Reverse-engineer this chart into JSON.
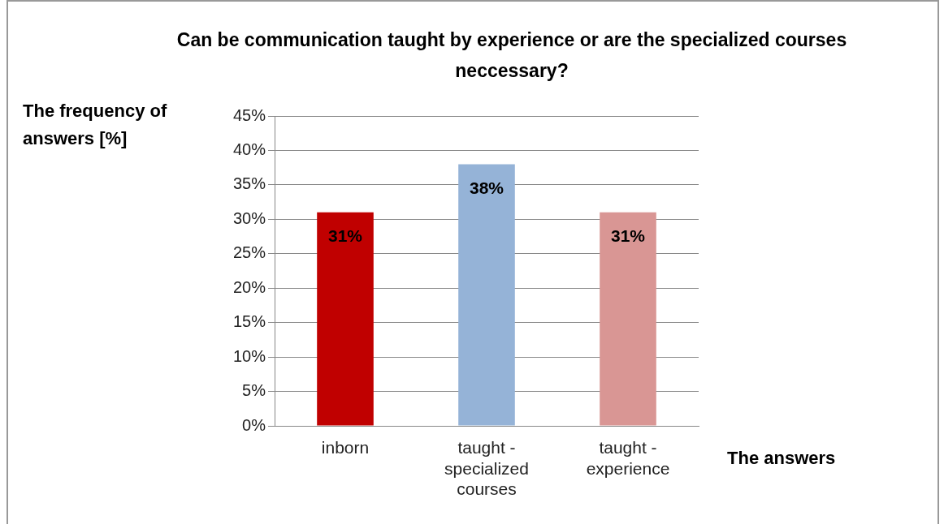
{
  "chart_data": {
    "type": "bar",
    "title": "Can be communication  taught by experience or are the specialized courses neccessary?",
    "xlabel": "The answers",
    "ylabel": "The frequency of answers [%]",
    "categories": [
      "inborn",
      "taught - specialized courses",
      "taught - experience"
    ],
    "values": [
      31,
      38,
      31
    ],
    "colors": [
      "#c00000",
      "#95b3d7",
      "#d99694"
    ],
    "value_labels": [
      "31%",
      "38%",
      "31%"
    ],
    "ylim": [
      0,
      45
    ],
    "yticks": [
      {
        "value": 0,
        "label": "0%"
      },
      {
        "value": 5,
        "label": "5%"
      },
      {
        "value": 10,
        "label": "10%"
      },
      {
        "value": 15,
        "label": "15%"
      },
      {
        "value": 20,
        "label": "20%"
      },
      {
        "value": 25,
        "label": "25%"
      },
      {
        "value": 30,
        "label": "30%"
      },
      {
        "value": 35,
        "label": "35%"
      },
      {
        "value": 40,
        "label": "40%"
      },
      {
        "value": 45,
        "label": "45%"
      }
    ],
    "grid": "y",
    "legend": false
  }
}
